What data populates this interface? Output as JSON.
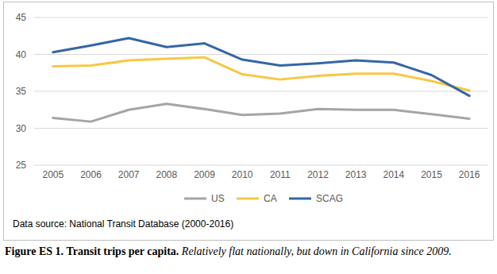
{
  "chart_data": {
    "type": "line",
    "title": "Transit trips per capita.",
    "subtitle": "Relatively flat nationally, but down in California since 2009.",
    "annotations": [
      "Figure ES 1.",
      "Data source: National Transit Database (2000-2016)"
    ],
    "categories": [
      "2005",
      "2006",
      "2007",
      "2008",
      "2009",
      "2010",
      "2011",
      "2012",
      "2013",
      "2014",
      "2015",
      "2016"
    ],
    "series": [
      {
        "name": "US",
        "color": "#a5a5a5",
        "values": [
          31.4,
          30.9,
          32.5,
          33.3,
          32.6,
          31.8,
          32.0,
          32.6,
          32.5,
          32.5,
          31.9,
          31.3
        ]
      },
      {
        "name": "CA",
        "color": "#f7c744",
        "values": [
          38.4,
          38.5,
          39.2,
          39.4,
          39.6,
          37.3,
          36.6,
          37.1,
          37.4,
          37.4,
          36.4,
          35.1
        ]
      },
      {
        "name": "SCAG",
        "color": "#3566a6",
        "values": [
          40.3,
          41.2,
          42.2,
          41.0,
          41.5,
          39.3,
          38.5,
          38.8,
          39.2,
          38.9,
          37.2,
          34.4
        ]
      }
    ],
    "ylim": [
      25,
      45
    ],
    "yticks": [
      25,
      30,
      35,
      40,
      45
    ],
    "grid": true,
    "legend": "bottom"
  }
}
